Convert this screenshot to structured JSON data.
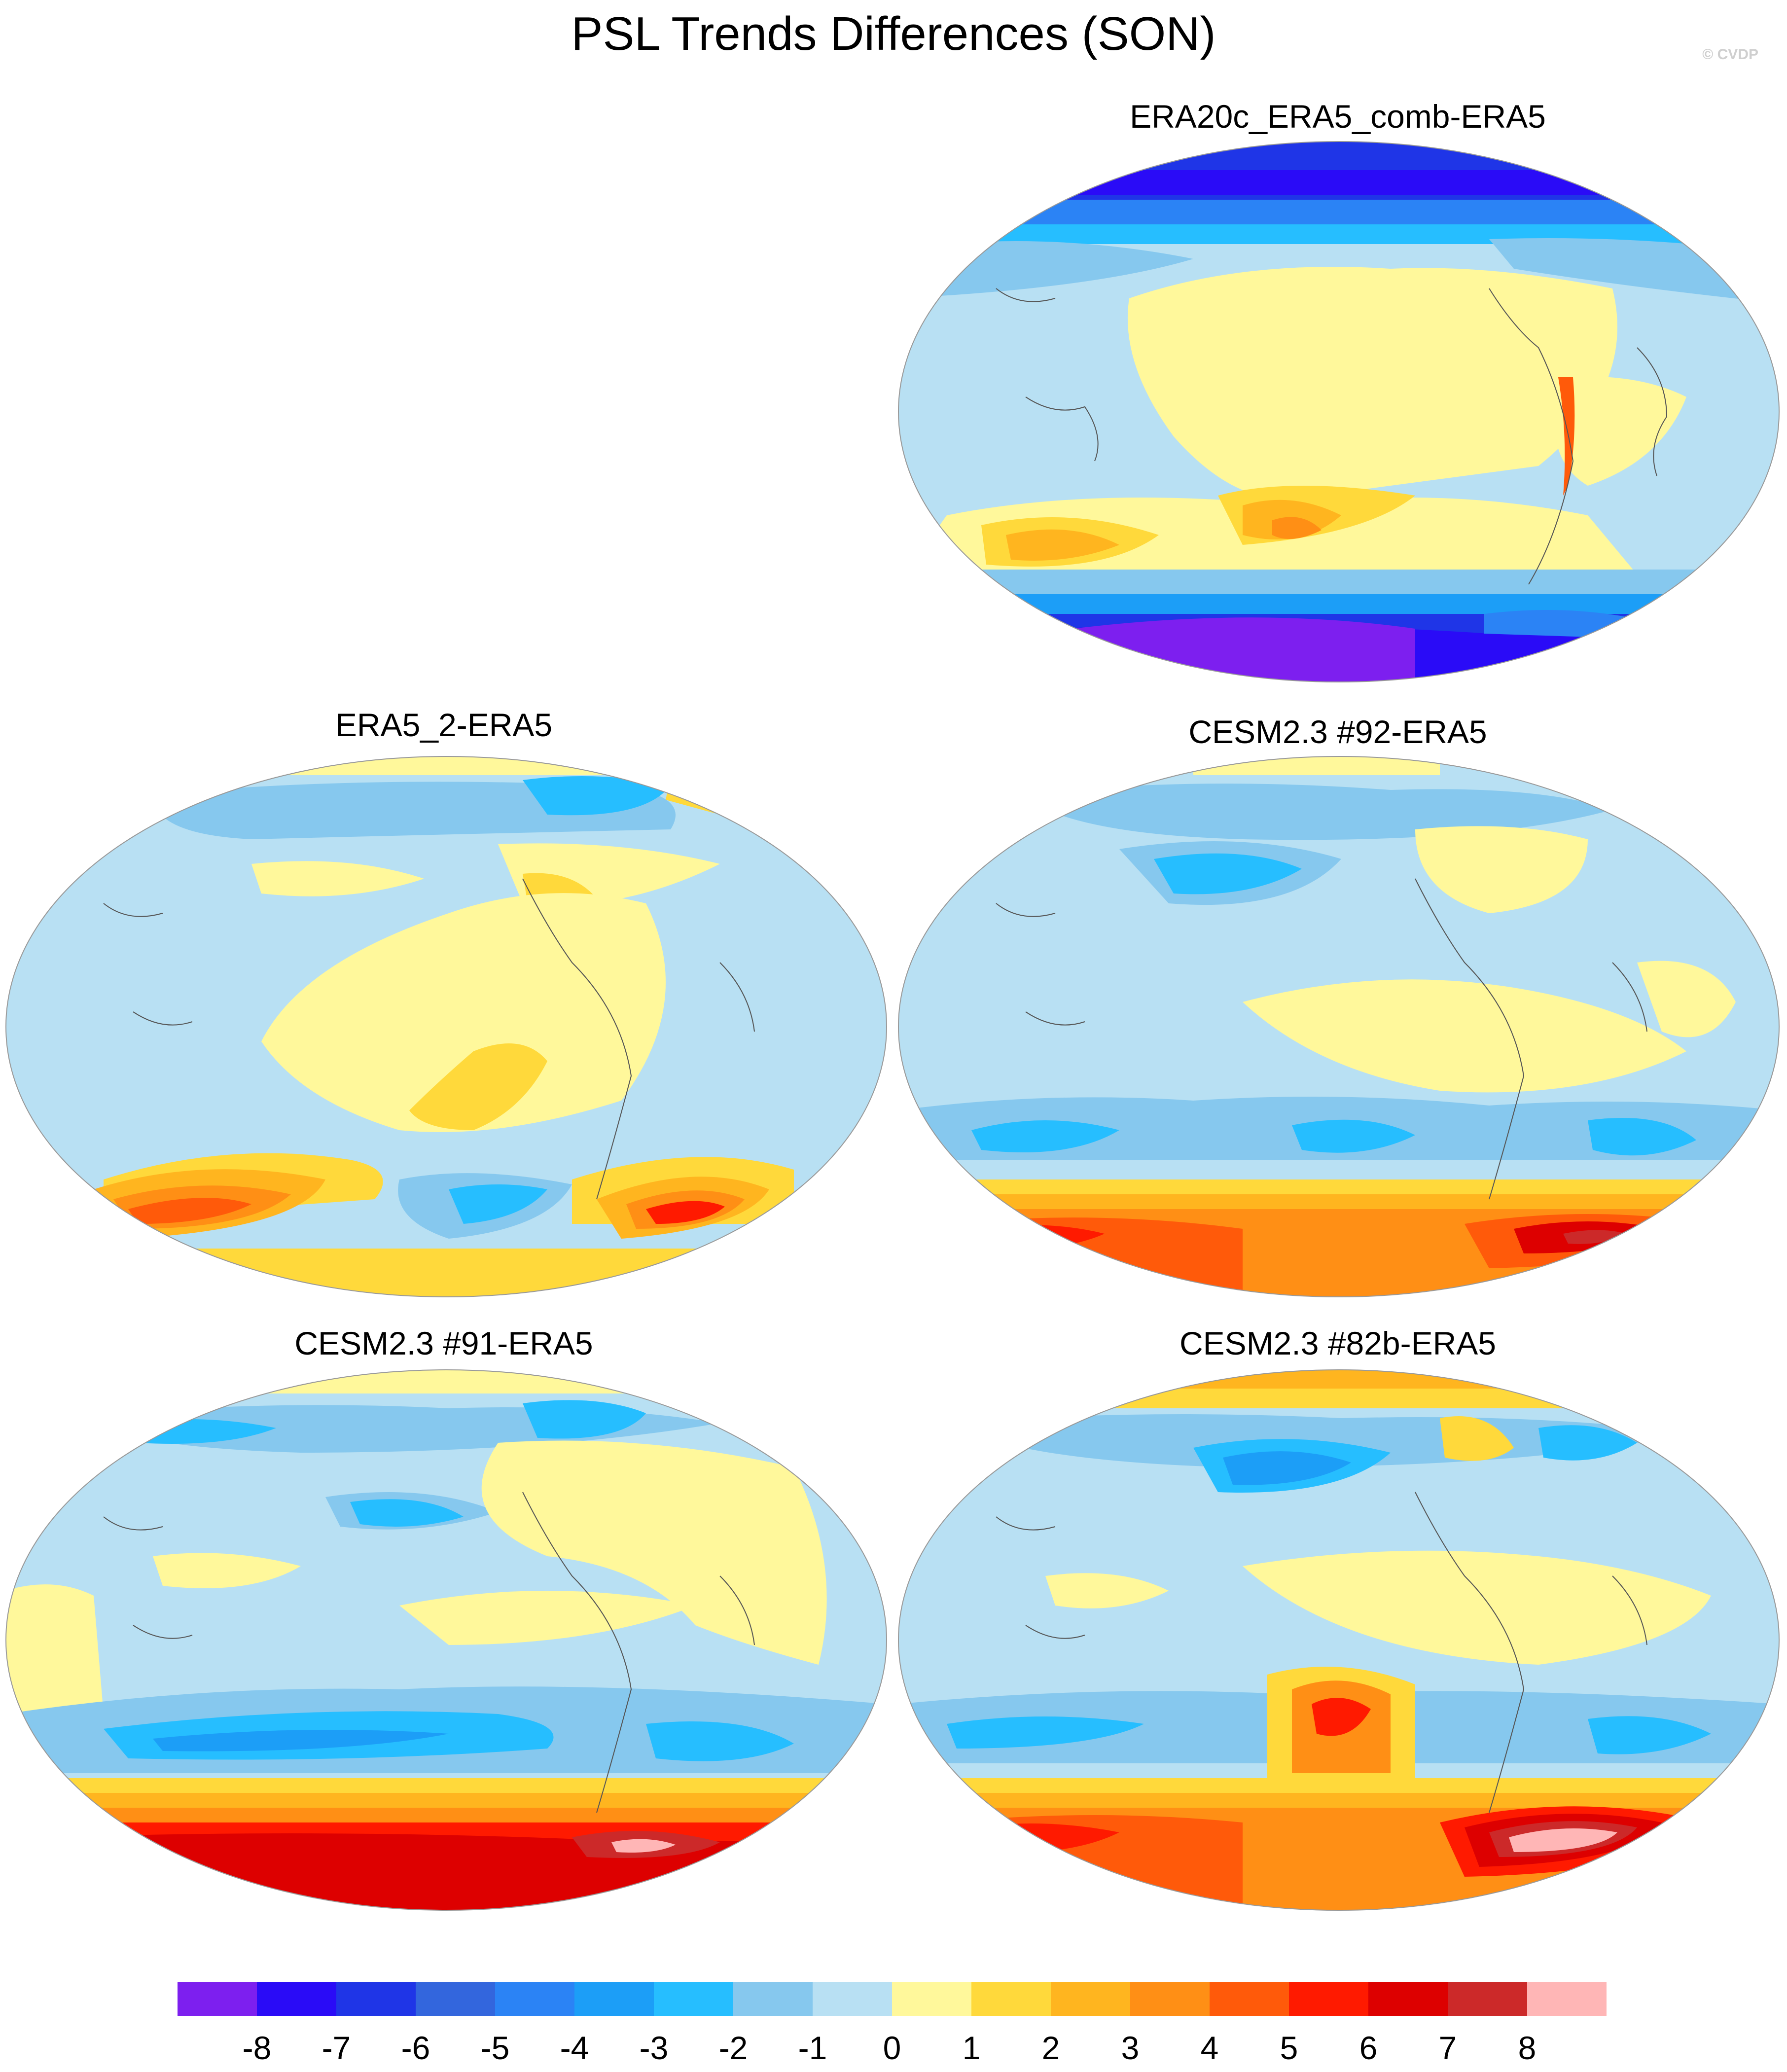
{
  "figure": {
    "title": "PSL Trends Differences (SON)",
    "credit": "© CVDP"
  },
  "colors": {
    "map_base_blue": "#b3dcf2",
    "coastline": "#555555"
  },
  "chart_data": [
    {
      "type": "heatmap",
      "title": "ERA20c_ERA5_comb-ERA5",
      "projection": "robinson",
      "dominant": "strong negative polar bands, positive Southern mid-latitude"
    },
    {
      "type": "heatmap",
      "title": "ERA5_2-ERA5",
      "projection": "robinson",
      "dominant": "positive Southern Ocean, weak negative elsewhere"
    },
    {
      "type": "heatmap",
      "title": "CESM2.3 #92-ERA5",
      "projection": "robinson",
      "dominant": "strong positive Antarctic band"
    },
    {
      "type": "heatmap",
      "title": "CESM2.3 #91-ERA5",
      "projection": "robinson",
      "dominant": "strong positive Antarctic band, negative ring"
    },
    {
      "type": "heatmap",
      "title": "CESM2.3 #82b-ERA5",
      "projection": "robinson",
      "dominant": "strong positive Antarctic, positive Arctic"
    }
  ],
  "colorbar": {
    "colors": [
      "#7d1fef",
      "#2a0bf7",
      "#1f35e7",
      "#3366dd",
      "#2b83f5",
      "#1c9ef7",
      "#26beff",
      "#86c8ee",
      "#b8e0f3",
      "#fff89b",
      "#ffd93b",
      "#ffb51f",
      "#ff8f15",
      "#ff5a0a",
      "#ff1a00",
      "#dd0000",
      "#cc2929",
      "#ffb6b6"
    ],
    "labels": [
      "-8",
      "-7",
      "-6",
      "-5",
      "-4",
      "-3",
      "-2",
      "-1",
      "0",
      "1",
      "2",
      "3",
      "4",
      "5",
      "6",
      "7",
      "8"
    ]
  }
}
